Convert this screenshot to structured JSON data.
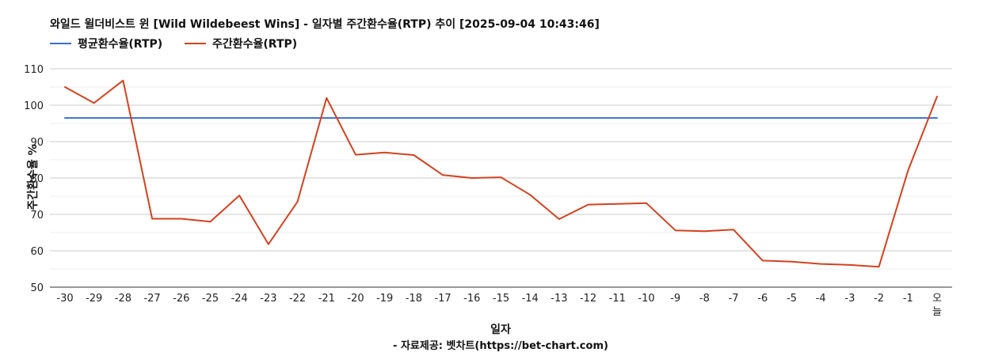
{
  "chart_data": {
    "type": "line",
    "title": "와일드 윌더비스트 윈 [Wild Wildebeest Wins] - 일자별 주간환수율(RTP) 추이 [2025-09-04 10:43:46]",
    "xlabel": "일자",
    "ylabel": "주간환수율 %",
    "source": "- 자료제공: 벳차트(https://bet-chart.com)",
    "legend_position": "top-left",
    "grid": true,
    "ylim": [
      50,
      110
    ],
    "yticks": [
      50,
      60,
      70,
      80,
      90,
      100,
      110
    ],
    "categories": [
      "-30",
      "-29",
      "-28",
      "-27",
      "-26",
      "-25",
      "-24",
      "-23",
      "-22",
      "-21",
      "-20",
      "-19",
      "-18",
      "-17",
      "-16",
      "-15",
      "-14",
      "-13",
      "-12",
      "-11",
      "-10",
      "-9",
      "-8",
      "-7",
      "-6",
      "-5",
      "-4",
      "-3",
      "-2",
      "-1",
      "오늘"
    ],
    "series": [
      {
        "name": "평균환수율(RTP)",
        "color": "#3a6fd0",
        "values": [
          96.5,
          96.5,
          96.5,
          96.5,
          96.5,
          96.5,
          96.5,
          96.5,
          96.5,
          96.5,
          96.5,
          96.5,
          96.5,
          96.5,
          96.5,
          96.5,
          96.5,
          96.5,
          96.5,
          96.5,
          96.5,
          96.5,
          96.5,
          96.5,
          96.5,
          96.5,
          96.5,
          96.5,
          96.5,
          96.5,
          96.5
        ]
      },
      {
        "name": "주간환수율(RTP)",
        "color": "#d2421f",
        "values": [
          105.0,
          100.6,
          106.8,
          68.8,
          68.8,
          68.0,
          75.2,
          61.8,
          73.5,
          102.0,
          86.4,
          87.0,
          86.3,
          80.8,
          80.0,
          80.2,
          75.4,
          68.7,
          72.7,
          72.9,
          73.1,
          65.6,
          65.4,
          65.8,
          57.3,
          57.0,
          56.4,
          56.1,
          55.6,
          82.0,
          102.4
        ]
      }
    ]
  }
}
